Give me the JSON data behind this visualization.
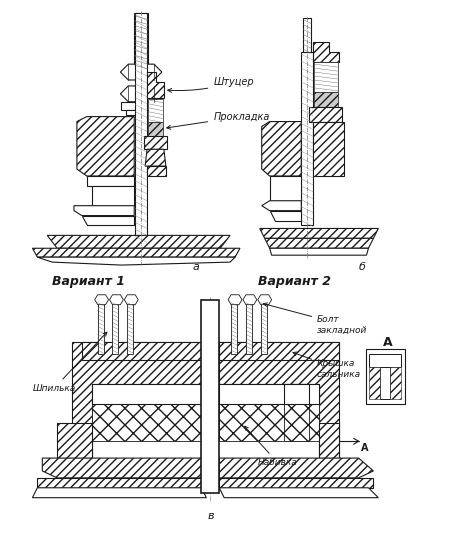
{
  "background_color": "#ffffff",
  "line_color": "#1a1a1a",
  "label_variant1": "Вариант 1",
  "label_variant2": "Вариант 2",
  "label_shtutser": "Штуцер",
  "label_prokladka": "Прокладка",
  "label_bolt": "Болт\nзакладной",
  "label_kryshka": "Крышка\nсальника",
  "label_shpilka": "Шпилька",
  "label_nabivka": "Набивка",
  "label_A_cap": "А",
  "label_a": "а",
  "label_b": "б",
  "label_v": "в",
  "fig_width": 4.77,
  "fig_height": 5.45,
  "dpi": 100
}
